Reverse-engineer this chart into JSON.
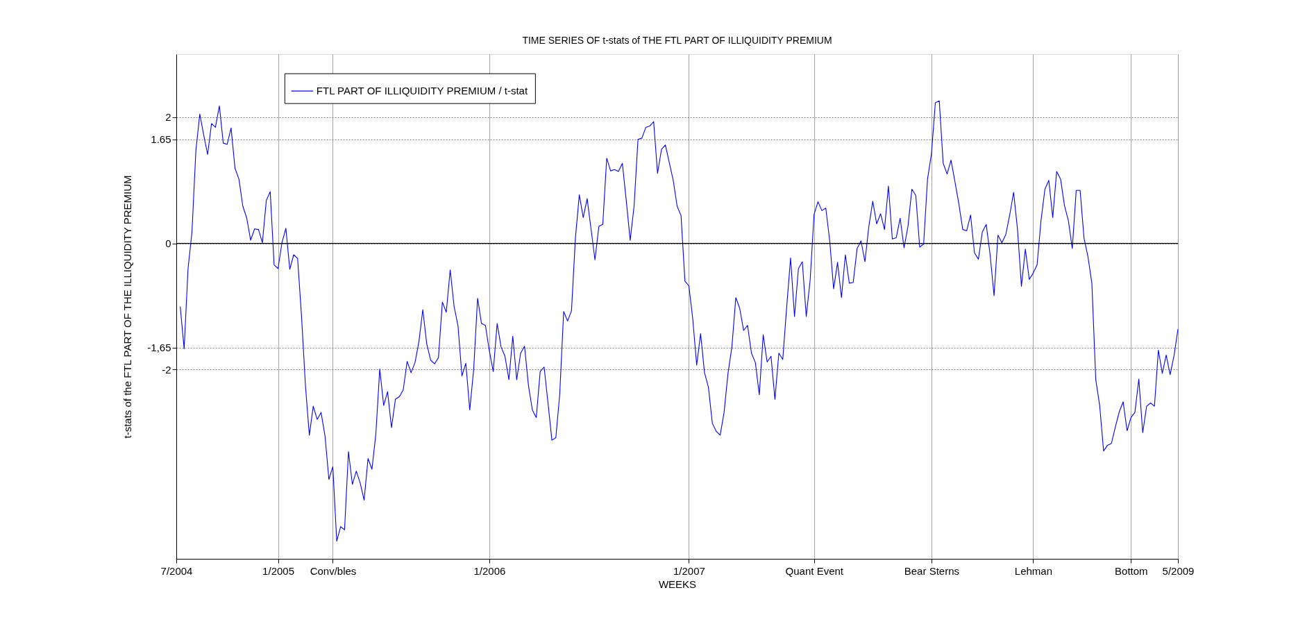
{
  "chart_data": {
    "type": "line",
    "title": "TIME SERIES OF t-stats of THE FTL PART OF ILLIQUIDITY PREMIUM",
    "xlabel": "WEEKS",
    "ylabel": "t-stats of the FTL PART OF THE ILLIQUIDITY PREMIUM",
    "categories": [
      "7/2004",
      null,
      null,
      null,
      null,
      null,
      null,
      null,
      null,
      null,
      null,
      null,
      null,
      null,
      null,
      null,
      null,
      null,
      null,
      null,
      null,
      null,
      null,
      null,
      null,
      null,
      "1/2005",
      null,
      null,
      null,
      null,
      null,
      null,
      null,
      null,
      null,
      null,
      null,
      null,
      null,
      "Conv/bles",
      null,
      null,
      null,
      null,
      null,
      null,
      null,
      null,
      null,
      null,
      null,
      null,
      null,
      null,
      null,
      null,
      null,
      null,
      null,
      null,
      null,
      null,
      null,
      null,
      null,
      null,
      null,
      null,
      null,
      null,
      null,
      null,
      null,
      null,
      null,
      null,
      null,
      null,
      null,
      "1/2006",
      null,
      null,
      null,
      null,
      null,
      null,
      null,
      null,
      null,
      null,
      null,
      null,
      null,
      null,
      null,
      null,
      null,
      null,
      null,
      null,
      null,
      null,
      null,
      null,
      null,
      null,
      null,
      null,
      null,
      null,
      null,
      null,
      null,
      null,
      null,
      null,
      null,
      null,
      null,
      null,
      null,
      null,
      null,
      null,
      null,
      null,
      null,
      null,
      null,
      null,
      "1/2007",
      null,
      null,
      null,
      null,
      null,
      null,
      null,
      null,
      null,
      null,
      null,
      null,
      null,
      null,
      null,
      null,
      null,
      null,
      null,
      null,
      null,
      null,
      null,
      null,
      null,
      null,
      null,
      null,
      null,
      null,
      null,
      "Quant Event",
      null,
      null,
      null,
      null,
      null,
      null,
      null,
      null,
      null,
      null,
      null,
      null,
      null,
      null,
      null,
      null,
      null,
      null,
      null,
      null,
      null,
      null,
      null,
      null,
      null,
      null,
      null,
      null,
      null,
      "Bear Sterns",
      null,
      null,
      null,
      null,
      null,
      null,
      null,
      null,
      null,
      null,
      null,
      null,
      null,
      null,
      null,
      null,
      null,
      null,
      null,
      null,
      null,
      null,
      null,
      null,
      null,
      "Lehman",
      null,
      null,
      null,
      null,
      null,
      null,
      null,
      null,
      null,
      null,
      null,
      null,
      null,
      null,
      null,
      null,
      null,
      null,
      null,
      null,
      null,
      null,
      null,
      null,
      "Bottom",
      null,
      null,
      null,
      null,
      null,
      null,
      null,
      null,
      null,
      null,
      null,
      "5/2009"
    ],
    "ylim": [
      -5,
      3
    ],
    "yticks": [
      -2,
      {
        "value": -1.65,
        "label": "-1,65"
      },
      0,
      1.65,
      2
    ],
    "grid": true,
    "legend": "top left",
    "marker": "none",
    "line_style": "solid",
    "ref_lines": [
      {
        "axis": "y",
        "value": 0,
        "color": "#000000"
      }
    ],
    "series": [
      {
        "name": "FTL PART OF ILLIQUIDITY PREMIUM / t-stat",
        "color": "#0000ff",
        "values": [
          null,
          -1.0,
          -1.67,
          -0.4,
          0.18,
          1.47,
          2.05,
          1.72,
          1.41,
          1.9,
          1.84,
          2.18,
          1.59,
          1.57,
          1.83,
          1.19,
          1.02,
          0.59,
          0.4,
          0.05,
          0.23,
          0.22,
          0.01,
          0.68,
          0.82,
          -0.34,
          -0.4,
          0.01,
          0.24,
          -0.41,
          -0.18,
          -0.24,
          -1.15,
          -2.25,
          -3.04,
          -2.58,
          -2.79,
          -2.68,
          -3.05,
          -3.74,
          -3.54,
          -4.72,
          -4.49,
          -4.54,
          -3.3,
          -3.82,
          -3.61,
          -3.8,
          -4.07,
          -3.41,
          -3.58,
          -3.02,
          -1.99,
          -2.57,
          -2.35,
          -2.92,
          -2.47,
          -2.43,
          -2.32,
          -1.87,
          -2.05,
          -1.89,
          -1.56,
          -1.05,
          -1.59,
          -1.85,
          -1.91,
          -1.81,
          -0.93,
          -1.09,
          -0.42,
          -1.0,
          -1.31,
          -2.1,
          -1.9,
          -2.64,
          -2.0,
          -0.87,
          -1.27,
          -1.3,
          -1.7,
          -2.03,
          -1.27,
          -1.64,
          -1.79,
          -2.16,
          -1.47,
          -2.16,
          -1.74,
          -1.63,
          -2.25,
          -2.64,
          -2.76,
          -2.03,
          -1.96,
          -2.53,
          -3.12,
          -3.08,
          -2.39,
          -1.08,
          -1.23,
          -1.07,
          0.08,
          0.77,
          0.41,
          0.71,
          0.23,
          -0.26,
          0.27,
          0.3,
          1.35,
          1.15,
          1.17,
          1.14,
          1.27,
          0.68,
          0.05,
          0.59,
          1.65,
          1.67,
          1.84,
          1.86,
          1.93,
          1.11,
          1.49,
          1.56,
          1.28,
          1.0,
          0.59,
          0.44,
          -0.6,
          -0.67,
          -1.2,
          -1.93,
          -1.43,
          -2.05,
          -2.28,
          -2.85,
          -2.98,
          -3.04,
          -2.68,
          -2.06,
          -1.64,
          -0.86,
          -1.03,
          -1.38,
          -1.3,
          -1.74,
          -1.89,
          -2.4,
          -1.45,
          -1.88,
          -1.79,
          -2.47,
          -1.74,
          -1.84,
          -1.01,
          -0.23,
          -1.16,
          -0.4,
          -0.29,
          -1.16,
          -0.58,
          0.46,
          0.66,
          0.52,
          0.56,
          0.04,
          -0.72,
          -0.3,
          -0.86,
          -0.18,
          -0.63,
          -0.62,
          -0.08,
          0.04,
          -0.29,
          0.27,
          0.67,
          0.31,
          0.47,
          0.22,
          0.91,
          0.07,
          0.09,
          0.4,
          -0.07,
          0.27,
          0.86,
          0.76,
          -0.06,
          -0.01,
          1.02,
          1.42,
          2.23,
          2.26,
          1.27,
          1.1,
          1.32,
          0.98,
          0.63,
          0.22,
          0.2,
          0.45,
          -0.15,
          -0.25,
          0.18,
          0.3,
          -0.18,
          -0.83,
          0.13,
          0.01,
          0.14,
          0.45,
          0.81,
          0.22,
          -0.68,
          -0.09,
          -0.57,
          -0.47,
          -0.34,
          0.36,
          0.86,
          1.0,
          0.41,
          1.14,
          1.02,
          0.6,
          0.36,
          -0.08,
          0.84,
          0.84,
          0.08,
          -0.21,
          -0.63,
          -2.16,
          -2.57,
          -3.29,
          -3.2,
          -3.17,
          -2.91,
          -2.67,
          -2.51,
          -2.97,
          -2.76,
          -2.68,
          -2.15,
          -3.0,
          -2.58,
          -2.53,
          -2.58,
          -1.69,
          -2.06,
          -1.77,
          -2.08,
          -1.78,
          -1.36
        ]
      }
    ]
  }
}
